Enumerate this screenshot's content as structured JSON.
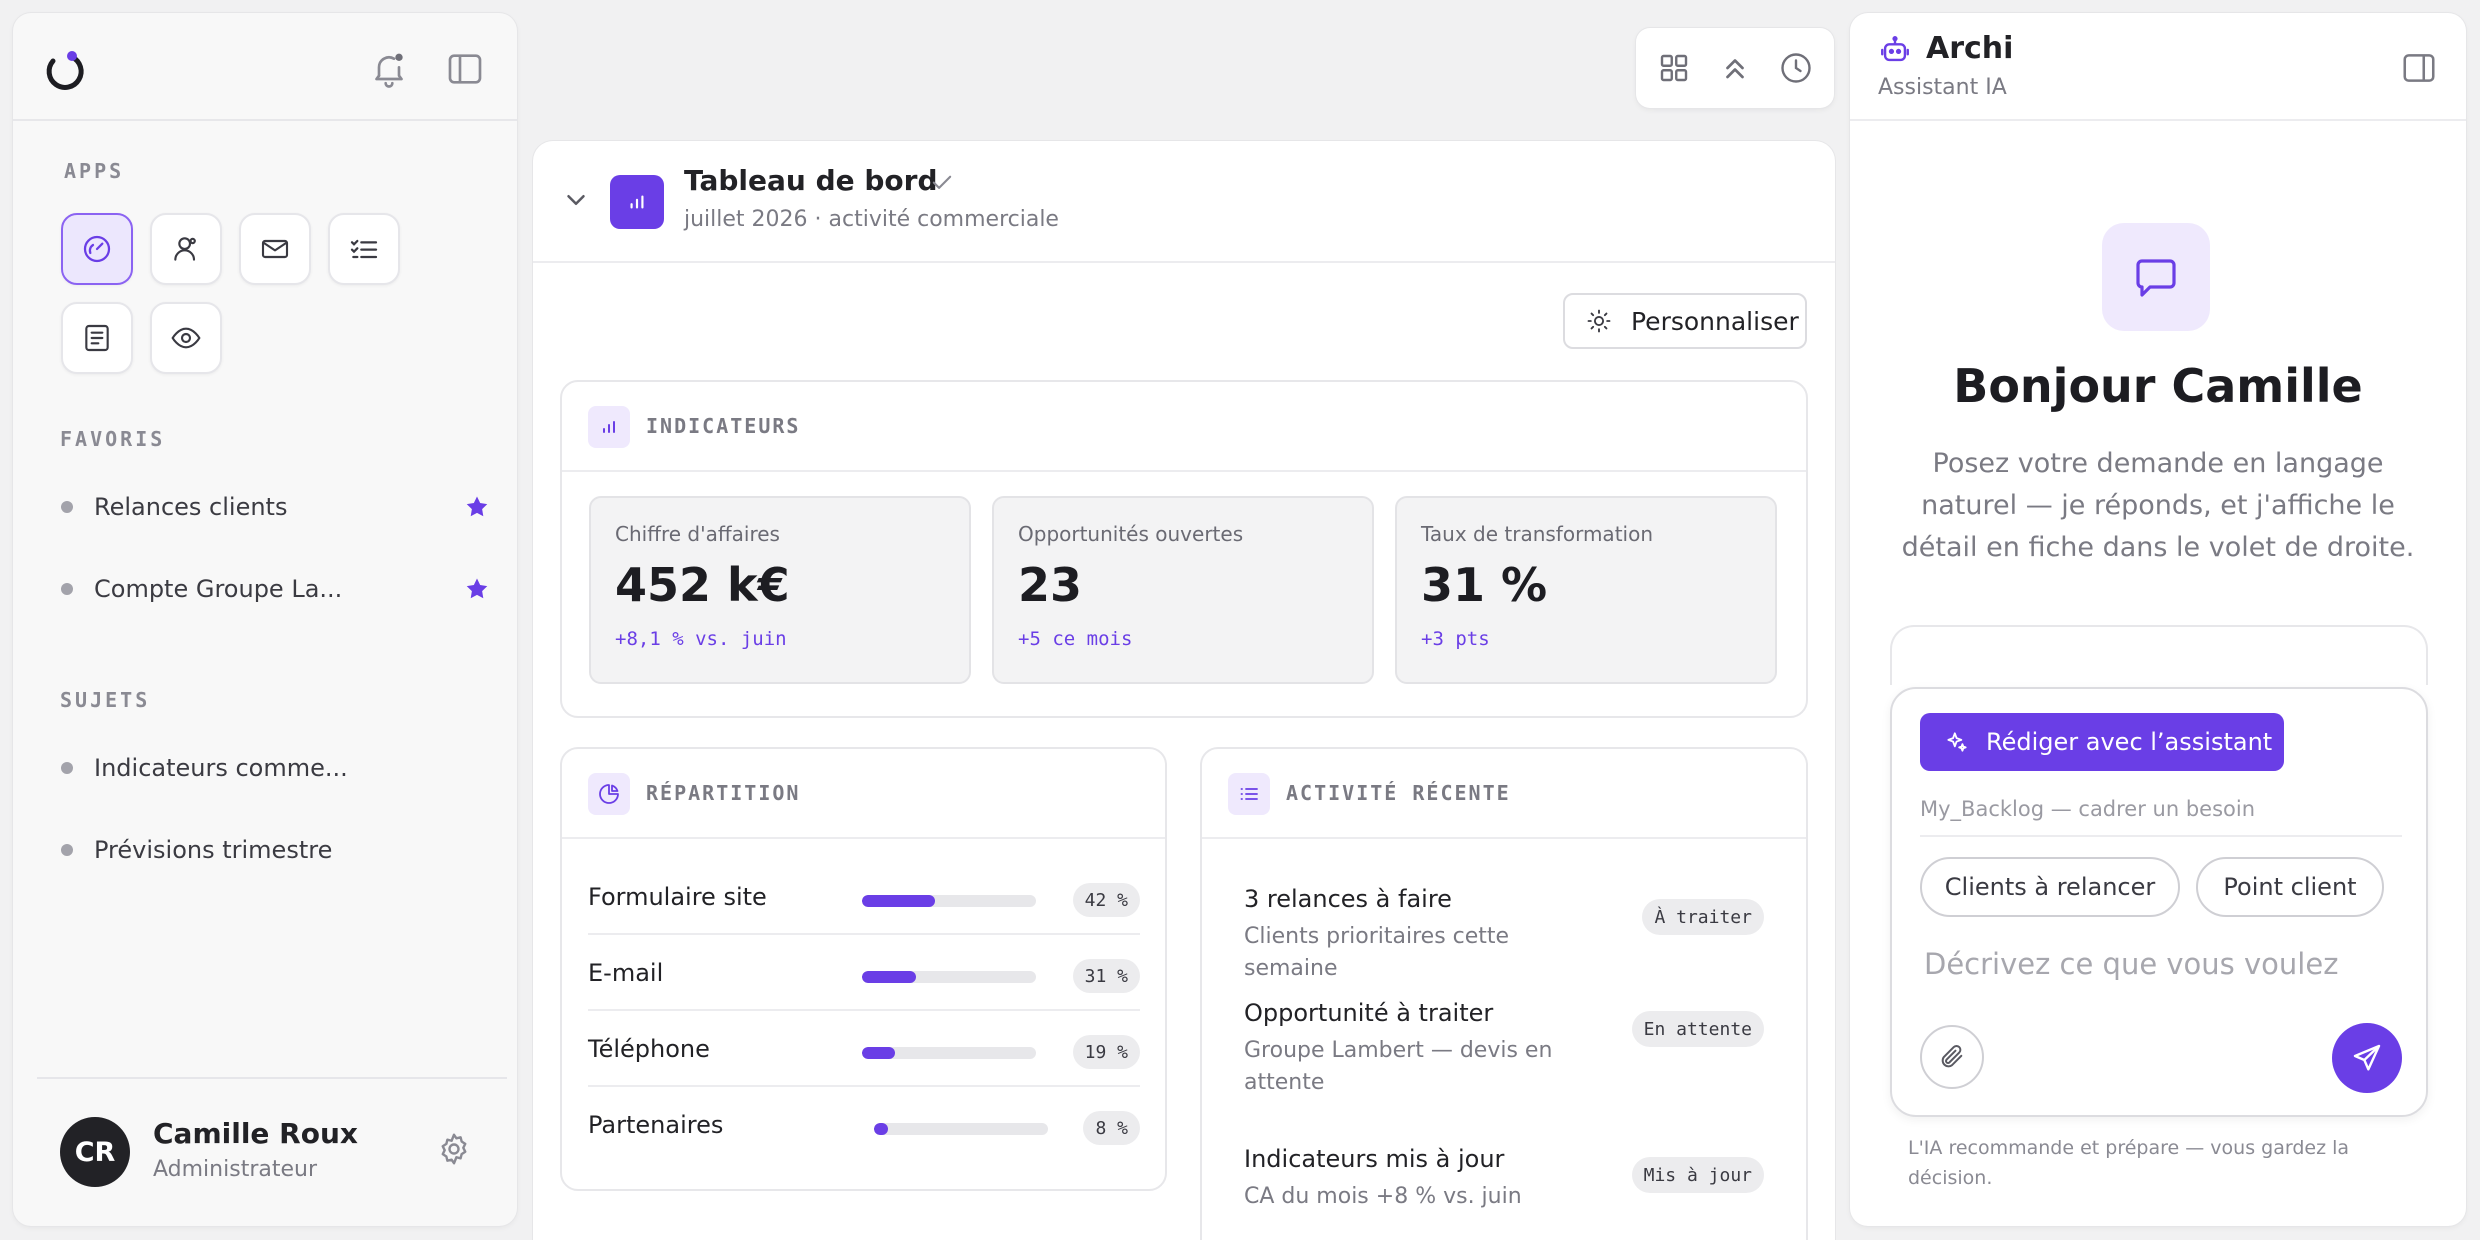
{
  "sidebar": {
    "apps_label": "APPS",
    "favorites_label": "FAVORIS",
    "favorites": [
      {
        "label": "Relances clients"
      },
      {
        "label": "Compte Groupe La..."
      }
    ],
    "subjects_label": "SUJETS",
    "subjects": [
      {
        "label": "Indicateurs comme..."
      },
      {
        "label": "Prévisions trimestre"
      }
    ],
    "user": {
      "initials": "CR",
      "name": "Camille Roux",
      "role": "Administrateur"
    }
  },
  "main": {
    "title": "Tableau de bord",
    "subtitle": "juillet 2026 · activité commerciale",
    "customize_label": "Personnaliser",
    "indicators": {
      "title": "INDICATEURS",
      "kpis": [
        {
          "label": "Chiffre d'affaires",
          "value": "452 k€",
          "delta": "+8,1 % vs. juin"
        },
        {
          "label": "Opportunités ouvertes",
          "value": "23",
          "delta": "+5 ce mois"
        },
        {
          "label": "Taux de transformation",
          "value": "31 %",
          "delta": "+3 pts"
        }
      ]
    },
    "breakdown": {
      "title": "RÉPARTITION",
      "rows": [
        {
          "label": "Formulaire site",
          "pct": "42 %",
          "fill": 0.42
        },
        {
          "label": "E-mail",
          "pct": "31 %",
          "fill": 0.31
        },
        {
          "label": "Téléphone",
          "pct": "19 %",
          "fill": 0.19
        },
        {
          "label": "Partenaires",
          "pct": "8 %",
          "fill": 0.08
        }
      ]
    },
    "activity": {
      "title": "ACTIVITÉ RÉCENTE",
      "items": [
        {
          "title": "3 relances à faire",
          "sub": "Clients prioritaires cette semaine",
          "badge": "À traiter"
        },
        {
          "title": "Opportunité à traiter",
          "sub": "Groupe Lambert — devis en attente",
          "badge": "En attente"
        },
        {
          "title": "Indicateurs mis à jour",
          "sub": "CA du mois +8 % vs. juin",
          "badge": "Mis à jour"
        }
      ]
    }
  },
  "assistant": {
    "name": "Archi",
    "role": "Assistant IA",
    "greeting": "Bonjour Camille",
    "intro": "Posez votre demande en langage naturel — je réponds, et j'affiche le détail en fiche dans le volet de droite.",
    "draft_label": "Rédiger avec l’assistant",
    "backlog_text": "My_Backlog — cadrer un besoin",
    "chips": [
      "Clients à relancer",
      "Point client"
    ],
    "placeholder": "Décrivez ce que vous voulez",
    "disclaimer": "L'IA recommande et prépare — vous gardez la décision."
  },
  "colors": {
    "accent": "#6a3ee6",
    "accent_soft": "#efe9fd"
  }
}
